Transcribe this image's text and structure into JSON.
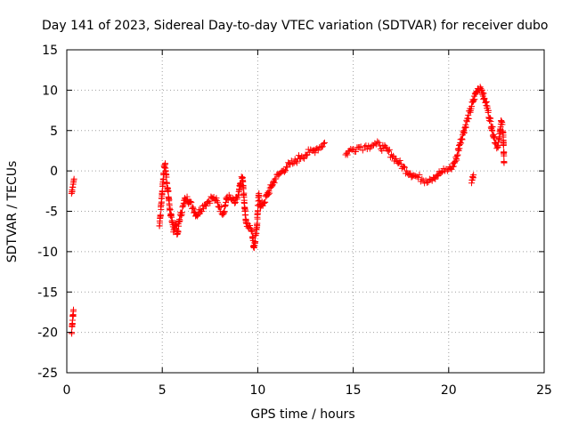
{
  "chart_data": {
    "type": "scatter",
    "title": "Day 141 of 2023, Sidereal Day-to-day VTEC variation (SDTVAR) for receiver dubo",
    "xlabel": "GPS time / hours",
    "ylabel": "SDTVAR / TECUs",
    "xlim": [
      0,
      25
    ],
    "ylim": [
      -25,
      15
    ],
    "xticks": [
      "0",
      "5",
      "10",
      "15",
      "20",
      "25"
    ],
    "yticks": [
      "-25",
      "-20",
      "-15",
      "-10",
      "-5",
      "0",
      "5",
      "10",
      "15"
    ],
    "grid": true,
    "marker": "+",
    "color": "#ff0000",
    "series": [
      {
        "name": "SDTVAR",
        "points": [
          [
            0.25,
            -2.8
          ],
          [
            0.3,
            -2.0
          ],
          [
            0.35,
            -1.4
          ],
          [
            0.38,
            -1.0
          ],
          [
            0.25,
            -20.0
          ],
          [
            0.28,
            -19.3
          ],
          [
            0.3,
            -18.5
          ],
          [
            0.33,
            -17.8
          ],
          [
            0.35,
            -17.2
          ],
          [
            4.85,
            -6.8
          ],
          [
            4.9,
            -5.5
          ],
          [
            4.95,
            -4.0
          ],
          [
            5.0,
            -2.5
          ],
          [
            5.05,
            -1.0
          ],
          [
            5.1,
            0.5
          ],
          [
            5.15,
            0.8
          ],
          [
            5.2,
            -0.5
          ],
          [
            5.3,
            -2.5
          ],
          [
            5.4,
            -4.8
          ],
          [
            5.5,
            -6.3
          ],
          [
            5.6,
            -7.3
          ],
          [
            5.7,
            -6.5
          ],
          [
            5.8,
            -7.8
          ],
          [
            5.9,
            -6.0
          ],
          [
            6.0,
            -5.2
          ],
          [
            6.1,
            -4.3
          ],
          [
            6.2,
            -3.5
          ],
          [
            6.3,
            -3.2
          ],
          [
            6.4,
            -3.8
          ],
          [
            6.6,
            -4.5
          ],
          [
            6.8,
            -5.5
          ],
          [
            7.0,
            -4.8
          ],
          [
            7.2,
            -4.2
          ],
          [
            7.4,
            -3.8
          ],
          [
            7.6,
            -3.3
          ],
          [
            7.8,
            -3.6
          ],
          [
            8.0,
            -4.5
          ],
          [
            8.2,
            -5.2
          ],
          [
            8.4,
            -3.2
          ],
          [
            8.6,
            -3.5
          ],
          [
            8.8,
            -4.0
          ],
          [
            9.0,
            -3.0
          ],
          [
            9.1,
            -1.5
          ],
          [
            9.2,
            -0.8
          ],
          [
            9.3,
            -4.0
          ],
          [
            9.4,
            -6.5
          ],
          [
            9.55,
            -7.0
          ],
          [
            9.7,
            -7.5
          ],
          [
            9.8,
            -9.5
          ],
          [
            9.95,
            -7.0
          ],
          [
            10.05,
            -3.0
          ],
          [
            10.15,
            -4.5
          ],
          [
            10.3,
            -4.0
          ],
          [
            10.5,
            -3.0
          ],
          [
            10.7,
            -2.0
          ],
          [
            10.9,
            -1.0
          ],
          [
            11.1,
            -0.5
          ],
          [
            11.3,
            0.0
          ],
          [
            11.5,
            0.5
          ],
          [
            11.7,
            0.8
          ],
          [
            11.9,
            1.0
          ],
          [
            12.1,
            1.5
          ],
          [
            12.3,
            1.8
          ],
          [
            12.5,
            2.0
          ],
          [
            12.7,
            2.3
          ],
          [
            12.9,
            2.5
          ],
          [
            13.1,
            2.8
          ],
          [
            13.3,
            3.0
          ],
          [
            13.5,
            3.5
          ],
          [
            14.6,
            2.0
          ],
          [
            14.8,
            2.5
          ],
          [
            15.0,
            2.7
          ],
          [
            15.2,
            2.9
          ],
          [
            15.4,
            3.0
          ],
          [
            15.6,
            3.0
          ],
          [
            15.8,
            3.1
          ],
          [
            16.0,
            3.2
          ],
          [
            16.2,
            3.3
          ],
          [
            16.4,
            3.1
          ],
          [
            16.6,
            2.8
          ],
          [
            16.8,
            2.5
          ],
          [
            17.0,
            2.0
          ],
          [
            17.2,
            1.5
          ],
          [
            17.4,
            1.0
          ],
          [
            17.6,
            0.5
          ],
          [
            17.8,
            0.0
          ],
          [
            18.0,
            -0.3
          ],
          [
            18.2,
            -0.6
          ],
          [
            18.4,
            -0.8
          ],
          [
            18.6,
            -1.0
          ],
          [
            18.8,
            -1.2
          ],
          [
            19.0,
            -1.0
          ],
          [
            19.2,
            -0.8
          ],
          [
            19.4,
            -0.5
          ],
          [
            19.6,
            -0.2
          ],
          [
            19.8,
            0.0
          ],
          [
            20.0,
            0.2
          ],
          [
            20.2,
            0.5
          ],
          [
            20.4,
            1.5
          ],
          [
            20.6,
            3.5
          ],
          [
            20.8,
            5.0
          ],
          [
            21.0,
            6.5
          ],
          [
            21.2,
            8.0
          ],
          [
            21.4,
            9.5
          ],
          [
            21.55,
            10.2
          ],
          [
            21.65,
            10.4
          ],
          [
            21.75,
            10.0
          ],
          [
            21.85,
            9.0
          ],
          [
            21.95,
            8.5
          ],
          [
            22.05,
            7.5
          ],
          [
            22.15,
            6.5
          ],
          [
            22.25,
            5.5
          ],
          [
            22.35,
            4.5
          ],
          [
            22.45,
            3.5
          ],
          [
            22.55,
            3.0
          ],
          [
            22.65,
            4.0
          ],
          [
            22.75,
            6.2
          ],
          [
            22.85,
            4.8
          ],
          [
            22.9,
            1.0
          ],
          [
            21.2,
            -1.5
          ],
          [
            21.3,
            -0.5
          ]
        ]
      }
    ]
  }
}
